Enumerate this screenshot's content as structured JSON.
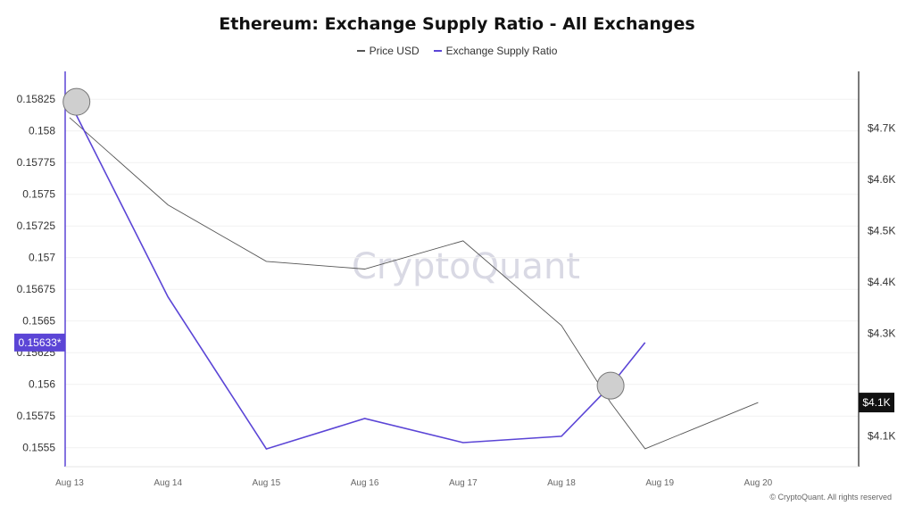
{
  "chart_data": {
    "type": "line",
    "title": "Ethereum: Exchange Supply Ratio - All Exchanges",
    "watermark": "CryptoQuant",
    "copyright": "© CryptoQuant. All rights reserved",
    "categories": [
      "Aug 13",
      "Aug 14",
      "Aug 15",
      "Aug 16",
      "Aug 17",
      "Aug 18",
      "Aug 19",
      "Aug 20"
    ],
    "left_axis": {
      "ticks": [
        "0.15825",
        "0.158",
        "0.15775",
        "0.1575",
        "0.15725",
        "0.157",
        "0.15675",
        "0.1565",
        "0.15625",
        "0.156",
        "0.15575",
        "0.1555"
      ],
      "tick_values": [
        0.15825,
        0.158,
        0.15775,
        0.1575,
        0.15725,
        0.157,
        0.15675,
        0.1565,
        0.15625,
        0.156,
        0.15575,
        0.1555
      ],
      "range": [
        0.15535,
        0.15847
      ],
      "current_label": "0.15633*",
      "current_value": 0.15633
    },
    "right_axis": {
      "ticks": [
        "$4.7K",
        "$4.6K",
        "$4.5K",
        "$4.4K",
        "$4.3K",
        "$4.1K"
      ],
      "tick_values": [
        4700,
        4600,
        4500,
        4400,
        4300,
        4100
      ],
      "range": [
        4040,
        4810
      ],
      "current_label": "$4.1K",
      "current_value": 4165
    },
    "series": [
      {
        "name": "Price USD",
        "color": "#555555",
        "axis": "right",
        "x": [
          0,
          1,
          2,
          3,
          4,
          5,
          5.5,
          5.85,
          7
        ],
        "values": [
          4720,
          4550,
          4440,
          4425,
          4480,
          4315,
          4165,
          4075,
          4165
        ]
      },
      {
        "name": "Exchange Supply Ratio",
        "color": "#5b45d6",
        "axis": "left",
        "x": [
          0,
          1,
          2,
          3,
          4,
          5,
          5.5,
          5.85
        ],
        "values": [
          0.15823,
          0.15669,
          0.15549,
          0.15573,
          0.15554,
          0.15559,
          0.15599,
          0.15633
        ]
      }
    ],
    "highlight_points": [
      {
        "x": 0.07,
        "axis": "left",
        "value": 0.15823
      },
      {
        "x": 5.5,
        "axis": "left",
        "value": 0.15599
      }
    ],
    "grid": true,
    "legend": "top-center"
  }
}
